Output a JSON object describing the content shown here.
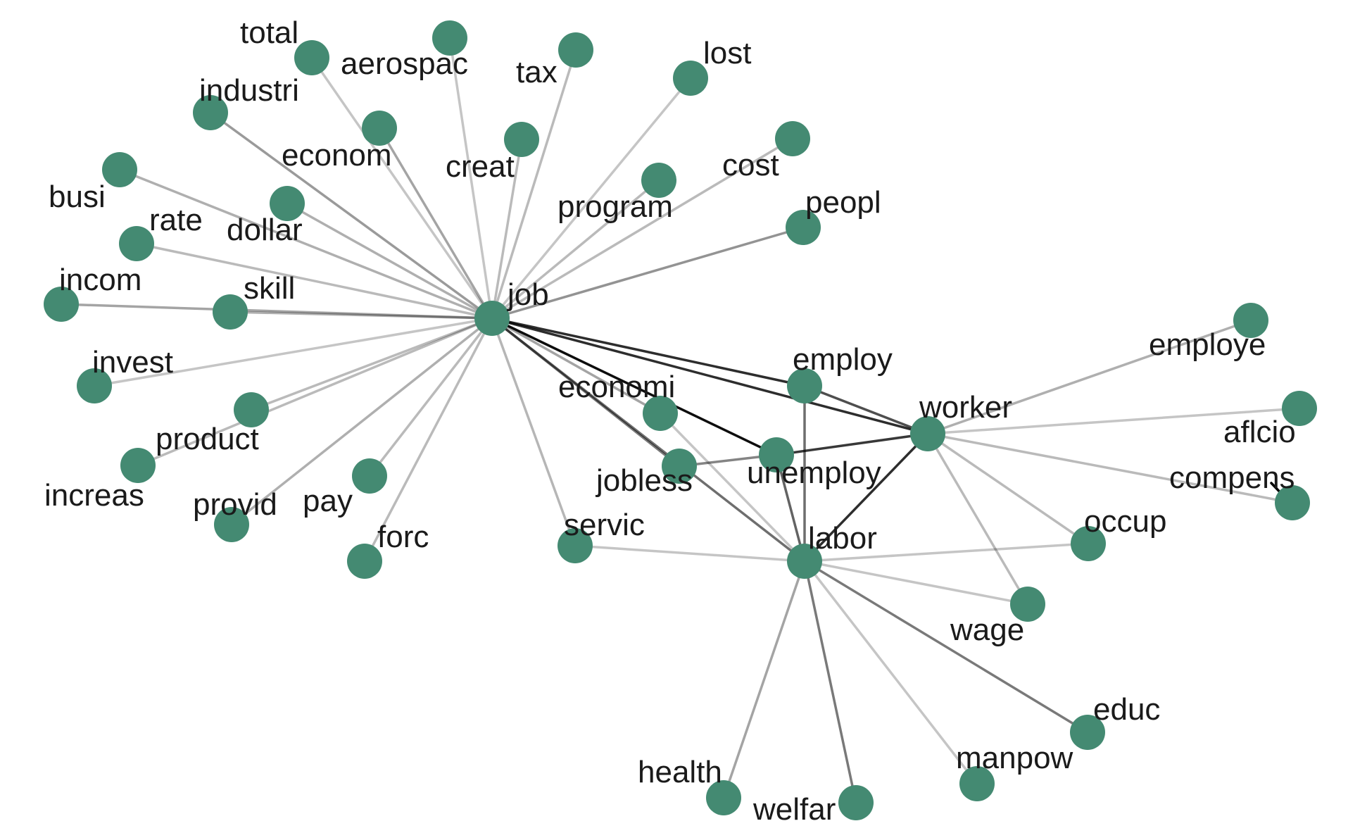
{
  "graph": {
    "node_color": "#448a72",
    "edge_color": "#000000",
    "nodes": [
      {
        "id": "job",
        "label": "job"
      },
      {
        "id": "labor",
        "label": "labor"
      },
      {
        "id": "worker",
        "label": "worker"
      },
      {
        "id": "employ",
        "label": "employ"
      },
      {
        "id": "unemploy",
        "label": "unemploy"
      },
      {
        "id": "jobless",
        "label": "jobless"
      },
      {
        "id": "economi",
        "label": "economi"
      },
      {
        "id": "servic",
        "label": "servic"
      },
      {
        "id": "total",
        "label": "total"
      },
      {
        "id": "aerospac",
        "label": "aerospac"
      },
      {
        "id": "tax",
        "label": "tax"
      },
      {
        "id": "lost",
        "label": "lost"
      },
      {
        "id": "industri",
        "label": "industri"
      },
      {
        "id": "econom",
        "label": "econom"
      },
      {
        "id": "creat",
        "label": "creat"
      },
      {
        "id": "cost",
        "label": "cost"
      },
      {
        "id": "program",
        "label": "program"
      },
      {
        "id": "busi",
        "label": "busi"
      },
      {
        "id": "dollar",
        "label": "dollar"
      },
      {
        "id": "rate",
        "label": "rate"
      },
      {
        "id": "peopl",
        "label": "peopl"
      },
      {
        "id": "incom",
        "label": "incom"
      },
      {
        "id": "skill",
        "label": "skill"
      },
      {
        "id": "invest",
        "label": "invest"
      },
      {
        "id": "product",
        "label": "product"
      },
      {
        "id": "increas",
        "label": "increas"
      },
      {
        "id": "provid",
        "label": "provid"
      },
      {
        "id": "pay",
        "label": "pay"
      },
      {
        "id": "forc",
        "label": "forc"
      },
      {
        "id": "employe",
        "label": "employe"
      },
      {
        "id": "aflcio",
        "label": "aflcio"
      },
      {
        "id": "compens",
        "label": "compens"
      },
      {
        "id": "occup",
        "label": "occup"
      },
      {
        "id": "wage",
        "label": "wage"
      },
      {
        "id": "educ",
        "label": "educ"
      },
      {
        "id": "manpow",
        "label": "manpow"
      },
      {
        "id": "health",
        "label": "health"
      },
      {
        "id": "welfar",
        "label": "welfar"
      }
    ],
    "edges": [
      {
        "source": "job",
        "target": "total",
        "weight": 0.15
      },
      {
        "source": "job",
        "target": "aerospac",
        "weight": 0.15
      },
      {
        "source": "job",
        "target": "tax",
        "weight": 0.2
      },
      {
        "source": "job",
        "target": "lost",
        "weight": 0.15
      },
      {
        "source": "job",
        "target": "industri",
        "weight": 0.35
      },
      {
        "source": "job",
        "target": "econom",
        "weight": 0.3
      },
      {
        "source": "job",
        "target": "creat",
        "weight": 0.2
      },
      {
        "source": "job",
        "target": "cost",
        "weight": 0.2
      },
      {
        "source": "job",
        "target": "program",
        "weight": 0.2
      },
      {
        "source": "job",
        "target": "busi",
        "weight": 0.25
      },
      {
        "source": "job",
        "target": "dollar",
        "weight": 0.25
      },
      {
        "source": "job",
        "target": "rate",
        "weight": 0.2
      },
      {
        "source": "job",
        "target": "peopl",
        "weight": 0.38
      },
      {
        "source": "job",
        "target": "incom",
        "weight": 0.3
      },
      {
        "source": "job",
        "target": "skill",
        "weight": 0.25
      },
      {
        "source": "job",
        "target": "invest",
        "weight": 0.15
      },
      {
        "source": "job",
        "target": "product",
        "weight": 0.2
      },
      {
        "source": "job",
        "target": "increas",
        "weight": 0.2
      },
      {
        "source": "job",
        "target": "provid",
        "weight": 0.25
      },
      {
        "source": "job",
        "target": "pay",
        "weight": 0.2
      },
      {
        "source": "job",
        "target": "forc",
        "weight": 0.2
      },
      {
        "source": "job",
        "target": "servic",
        "weight": 0.22
      },
      {
        "source": "job",
        "target": "economi",
        "weight": 0.3
      },
      {
        "source": "job",
        "target": "jobless",
        "weight": 0.5
      },
      {
        "source": "job",
        "target": "labor",
        "weight": 0.55
      },
      {
        "source": "job",
        "target": "unemploy",
        "weight": 1.0
      },
      {
        "source": "job",
        "target": "employ",
        "weight": 0.85
      },
      {
        "source": "job",
        "target": "worker",
        "weight": 0.85
      },
      {
        "source": "employ",
        "target": "worker",
        "weight": 0.7
      },
      {
        "source": "employ",
        "target": "labor",
        "weight": 0.55
      },
      {
        "source": "unemploy",
        "target": "worker",
        "weight": 0.8
      },
      {
        "source": "unemploy",
        "target": "labor",
        "weight": 0.6
      },
      {
        "source": "jobless",
        "target": "unemploy",
        "weight": 0.45
      },
      {
        "source": "economi",
        "target": "labor",
        "weight": 0.15
      },
      {
        "source": "labor",
        "target": "worker",
        "weight": 0.85
      },
      {
        "source": "labor",
        "target": "servic",
        "weight": 0.15
      },
      {
        "source": "labor",
        "target": "occup",
        "weight": 0.15
      },
      {
        "source": "labor",
        "target": "wage",
        "weight": 0.15
      },
      {
        "source": "labor",
        "target": "educ",
        "weight": 0.5
      },
      {
        "source": "labor",
        "target": "manpow",
        "weight": 0.15
      },
      {
        "source": "labor",
        "target": "health",
        "weight": 0.3
      },
      {
        "source": "labor",
        "target": "welfar",
        "weight": 0.5
      },
      {
        "source": "worker",
        "target": "employe",
        "weight": 0.25
      },
      {
        "source": "worker",
        "target": "aflcio",
        "weight": 0.15
      },
      {
        "source": "worker",
        "target": "compens",
        "weight": 0.2
      },
      {
        "source": "worker",
        "target": "occup",
        "weight": 0.2
      },
      {
        "source": "worker",
        "target": "wage",
        "weight": 0.2
      }
    ]
  }
}
